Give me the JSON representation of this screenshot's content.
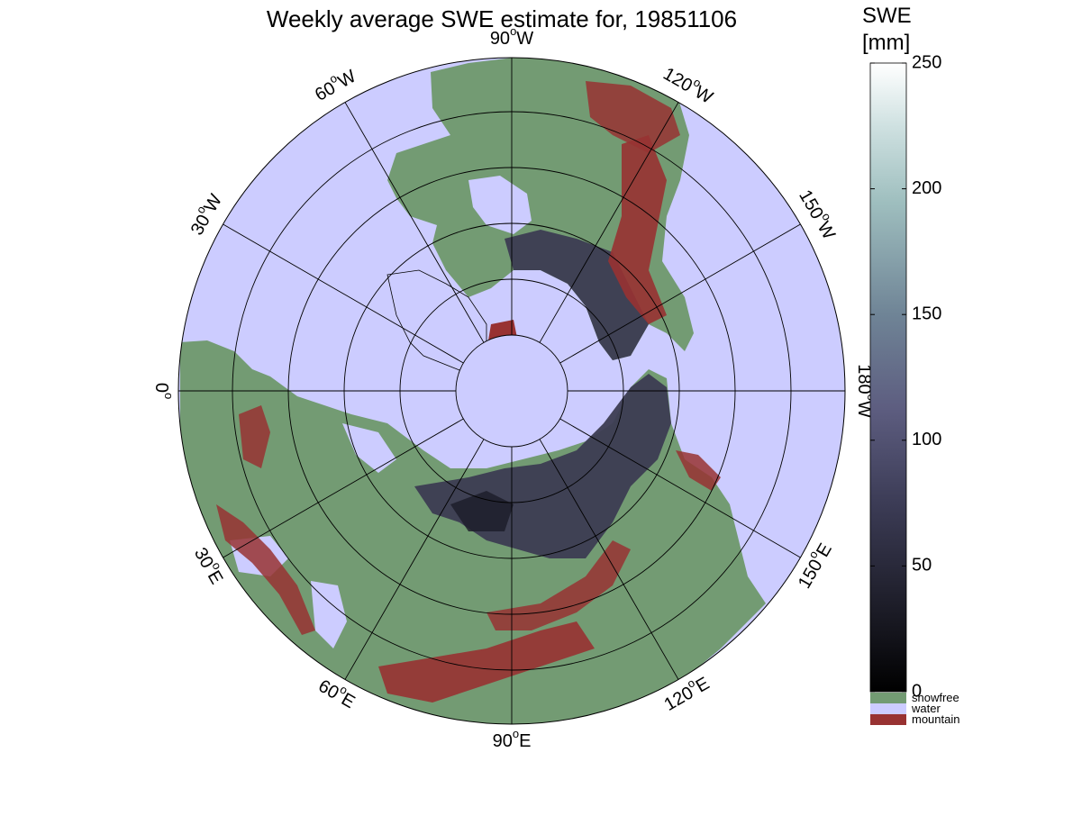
{
  "title": "Weekly average SWE estimate for, 19851106",
  "colorbar": {
    "label_line1": "SWE",
    "label_line2": "[mm]",
    "range": [
      0,
      250
    ],
    "ticks": [
      {
        "label": "250",
        "value": 250
      },
      {
        "label": "200",
        "value": 200
      },
      {
        "label": "150",
        "value": 150
      },
      {
        "label": "100",
        "value": 100
      },
      {
        "label": "50",
        "value": 50
      },
      {
        "label": "0",
        "value": 0
      }
    ]
  },
  "legend": [
    {
      "label": "snowfree",
      "color": "#739b73"
    },
    {
      "label": "water",
      "color": "#ccccff"
    },
    {
      "label": "mountain",
      "color": "#983232"
    }
  ],
  "longitude_labels": [
    {
      "deg": "90",
      "dir": "W"
    },
    {
      "deg": "120",
      "dir": "W"
    },
    {
      "deg": "150",
      "dir": "W"
    },
    {
      "deg": "180",
      "dir": "W"
    },
    {
      "deg": "150",
      "dir": "E"
    },
    {
      "deg": "120",
      "dir": "E"
    },
    {
      "deg": "90",
      "dir": "E"
    },
    {
      "deg": "60",
      "dir": "E"
    },
    {
      "deg": "30",
      "dir": "E"
    },
    {
      "deg": "0",
      "dir": ""
    },
    {
      "deg": "30",
      "dir": "W"
    },
    {
      "deg": "60",
      "dir": "W"
    }
  ],
  "colors": {
    "snowfree": "#739b73",
    "water": "#ccccff",
    "mountain": "#983232",
    "snow_dark": "#14141e",
    "snow_mid": "#4a4a66"
  }
}
